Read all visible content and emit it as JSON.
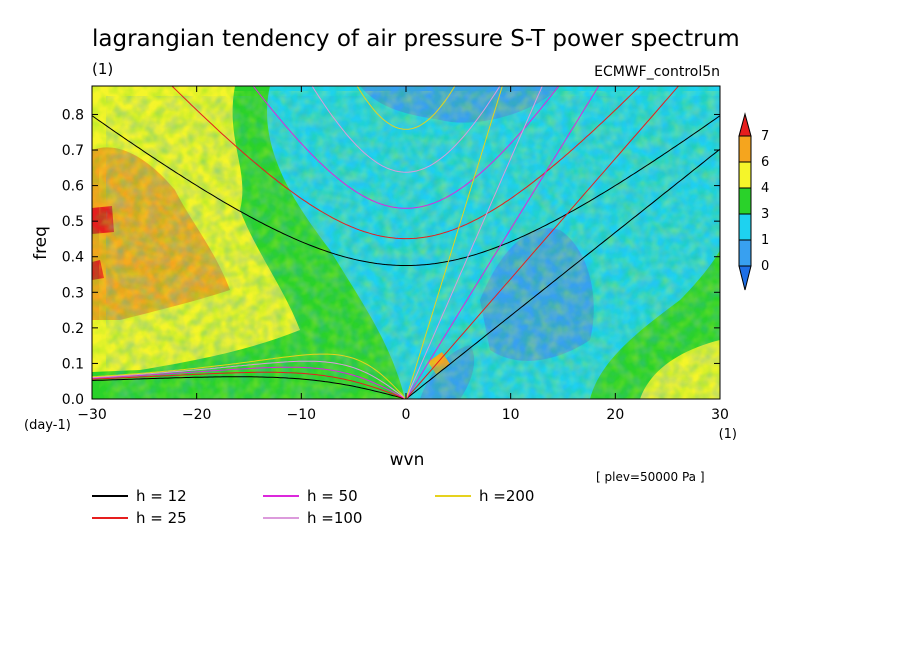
{
  "chart_data": {
    "type": "heatmap",
    "title": "lagrangian tendency of air pressure S-T power spectrum",
    "subtitle_left": "(1)",
    "subtitle_right": "ECMWF_control5n",
    "xlabel": "wvn",
    "ylabel": "freq",
    "x_unit": "(1)",
    "y_unit": "(day-1)",
    "xlim": [
      -30,
      30
    ],
    "ylim": [
      0,
      0.88
    ],
    "xticks": [
      -30,
      -20,
      -10,
      0,
      10,
      20,
      30
    ],
    "yticks": [
      0.0,
      0.1,
      0.2,
      0.3,
      0.4,
      0.5,
      0.6,
      0.7,
      0.8
    ],
    "annotation": "[ plev=50000 Pa ]",
    "colorbar": {
      "labels": [
        "0",
        "1",
        "3",
        "4",
        "6",
        "7"
      ],
      "colors": [
        "#1e6fe6",
        "#38a0f0",
        "#1ed2f0",
        "#2ad22a",
        "#f5f52a",
        "#f5a51e",
        "#e61e1e"
      ]
    },
    "legend": [
      {
        "label": "h = 12",
        "color": "#000000"
      },
      {
        "label": "h = 25",
        "color": "#e61e1e"
      },
      {
        "label": "h = 50",
        "color": "#dc28dc"
      },
      {
        "label": "h =100",
        "color": "#dc9bdc"
      },
      {
        "label": "h =200",
        "color": "#e6d21e"
      }
    ],
    "dispersion_curves": {
      "equivalent_depths_m": [
        12,
        25,
        50,
        100,
        200
      ],
      "families": [
        "kelvin",
        "equatorial_rossby_n1",
        "inertia_gravity_n1"
      ]
    }
  }
}
